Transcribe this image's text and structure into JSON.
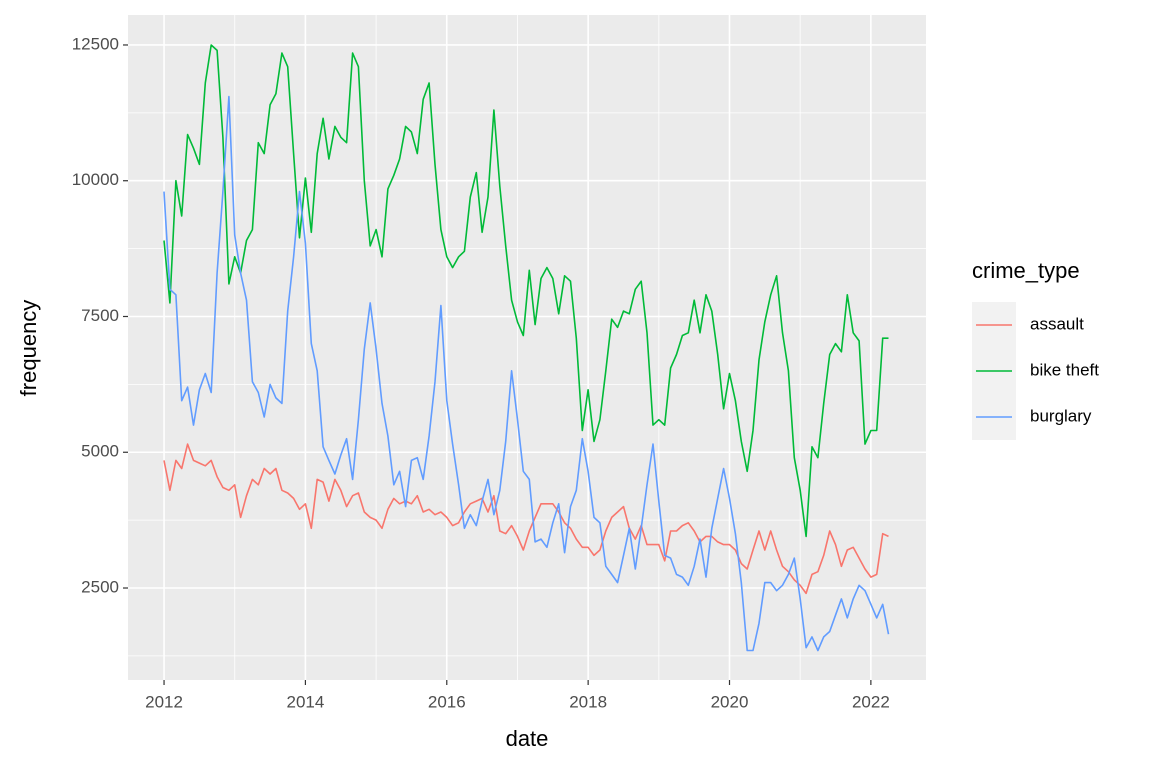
{
  "chart_data": {
    "type": "line",
    "x_label": "date",
    "y_label": "frequency",
    "legend_title": "crime_type",
    "legend": "right",
    "grid": true,
    "xlim": [
      2011.49,
      2022.78
    ],
    "xticks": [
      2012,
      2014,
      2016,
      2018,
      2020,
      2022
    ],
    "ylim": [
      806,
      13052
    ],
    "yticks": [
      2500,
      5000,
      7500,
      10000,
      12500
    ],
    "x": [
      2012,
      2012.083,
      2012.167,
      2012.25,
      2012.333,
      2012.417,
      2012.5,
      2012.583,
      2012.667,
      2012.75,
      2012.833,
      2012.917,
      2013,
      2013.083,
      2013.167,
      2013.25,
      2013.333,
      2013.417,
      2013.5,
      2013.583,
      2013.667,
      2013.75,
      2013.833,
      2013.917,
      2014,
      2014.083,
      2014.167,
      2014.25,
      2014.333,
      2014.417,
      2014.5,
      2014.583,
      2014.667,
      2014.75,
      2014.833,
      2014.917,
      2015,
      2015.083,
      2015.167,
      2015.25,
      2015.333,
      2015.417,
      2015.5,
      2015.583,
      2015.667,
      2015.75,
      2015.833,
      2015.917,
      2016,
      2016.083,
      2016.167,
      2016.25,
      2016.333,
      2016.417,
      2016.5,
      2016.583,
      2016.667,
      2016.75,
      2016.833,
      2016.917,
      2017,
      2017.083,
      2017.167,
      2017.25,
      2017.333,
      2017.417,
      2017.5,
      2017.583,
      2017.667,
      2017.75,
      2017.833,
      2017.917,
      2018,
      2018.083,
      2018.167,
      2018.25,
      2018.333,
      2018.417,
      2018.5,
      2018.583,
      2018.667,
      2018.75,
      2018.833,
      2018.917,
      2019,
      2019.083,
      2019.167,
      2019.25,
      2019.333,
      2019.417,
      2019.5,
      2019.583,
      2019.667,
      2019.75,
      2019.833,
      2019.917,
      2020,
      2020.083,
      2020.167,
      2020.25,
      2020.333,
      2020.417,
      2020.5,
      2020.583,
      2020.667,
      2020.75,
      2020.833,
      2020.917,
      2021,
      2021.083,
      2021.167,
      2021.25,
      2021.333,
      2021.417,
      2021.5,
      2021.583,
      2021.667,
      2021.75,
      2021.833,
      2021.917,
      2022,
      2022.083,
      2022.167,
      2022.25
    ],
    "series": [
      {
        "name": "assault",
        "color": "#F8766D",
        "values": [
          4850,
          4300,
          4850,
          4700,
          5150,
          4850,
          4800,
          4750,
          4850,
          4550,
          4350,
          4300,
          4400,
          3800,
          4200,
          4500,
          4400,
          4700,
          4600,
          4700,
          4300,
          4250,
          4150,
          3950,
          4050,
          3600,
          4500,
          4450,
          4100,
          4500,
          4300,
          4000,
          4200,
          4250,
          3900,
          3800,
          3750,
          3600,
          3950,
          4150,
          4050,
          4100,
          4050,
          4200,
          3900,
          3950,
          3850,
          3900,
          3800,
          3650,
          3700,
          3900,
          4050,
          4100,
          4150,
          3900,
          4200,
          3550,
          3500,
          3650,
          3450,
          3200,
          3550,
          3800,
          4050,
          4050,
          4050,
          3900,
          3700,
          3600,
          3400,
          3250,
          3250,
          3100,
          3200,
          3550,
          3800,
          3900,
          4000,
          3600,
          3400,
          3650,
          3300,
          3300,
          3300,
          3000,
          3550,
          3550,
          3650,
          3700,
          3550,
          3350,
          3450,
          3450,
          3350,
          3300,
          3300,
          3200,
          2950,
          2850,
          3200,
          3550,
          3200,
          3550,
          3200,
          2900,
          2800,
          2650,
          2550,
          2400,
          2750,
          2800,
          3100,
          3550,
          3300,
          2900,
          3200,
          3250,
          3050,
          2850,
          2700,
          2750,
          3500,
          3450
        ]
      },
      {
        "name": "bike theft",
        "color": "#00BA38",
        "values": [
          8900,
          7750,
          10000,
          9350,
          10850,
          10600,
          10300,
          11800,
          12500,
          12400,
          10800,
          8100,
          8600,
          8300,
          8900,
          9100,
          10700,
          10500,
          11400,
          11600,
          12350,
          12100,
          10500,
          8950,
          10050,
          9050,
          10500,
          11150,
          10400,
          11000,
          10800,
          10700,
          12350,
          12100,
          10000,
          8800,
          9100,
          8600,
          9850,
          10100,
          10400,
          11000,
          10900,
          10500,
          11500,
          11800,
          10300,
          9100,
          8600,
          8400,
          8600,
          8700,
          9700,
          10150,
          9050,
          9700,
          11300,
          9900,
          8800,
          7800,
          7400,
          7150,
          8350,
          7350,
          8200,
          8400,
          8200,
          7550,
          8250,
          8150,
          7100,
          5400,
          6150,
          5200,
          5600,
          6500,
          7450,
          7300,
          7600,
          7550,
          8000,
          8150,
          7200,
          5500,
          5600,
          5500,
          6550,
          6800,
          7150,
          7200,
          7800,
          7200,
          7900,
          7600,
          6800,
          5800,
          6450,
          5950,
          5200,
          4650,
          5400,
          6700,
          7400,
          7900,
          8250,
          7200,
          6500,
          4900,
          4300,
          3450,
          5100,
          4900,
          5900,
          6800,
          7000,
          6850,
          7900,
          7200,
          7050,
          5150,
          5400,
          5400,
          7100,
          7100
        ]
      },
      {
        "name": "burglary",
        "color": "#619CFF",
        "values": [
          9800,
          8000,
          7900,
          5950,
          6200,
          5500,
          6150,
          6450,
          6100,
          8300,
          9800,
          11550,
          9000,
          8300,
          7800,
          6300,
          6100,
          5650,
          6250,
          6000,
          5900,
          7600,
          8600,
          9800,
          8850,
          7000,
          6500,
          5100,
          4850,
          4600,
          4950,
          5250,
          4500,
          5600,
          6900,
          7750,
          6900,
          5900,
          5300,
          4400,
          4650,
          4000,
          4850,
          4900,
          4500,
          5300,
          6300,
          7700,
          5950,
          5150,
          4400,
          3600,
          3850,
          3650,
          4100,
          4500,
          3850,
          4300,
          5200,
          6500,
          5600,
          4650,
          4500,
          3350,
          3400,
          3250,
          3700,
          4050,
          3150,
          4000,
          4300,
          5250,
          4650,
          3800,
          3700,
          2900,
          2750,
          2600,
          3100,
          3600,
          2850,
          3600,
          4400,
          5150,
          4100,
          3100,
          3050,
          2750,
          2700,
          2550,
          2900,
          3400,
          2700,
          3600,
          4150,
          4700,
          4150,
          3500,
          2600,
          1350,
          1350,
          1850,
          2600,
          2600,
          2450,
          2550,
          2750,
          3050,
          2300,
          1400,
          1600,
          1350,
          1600,
          1700,
          2000,
          2300,
          1950,
          2300,
          2550,
          2450,
          2200,
          1950,
          2200,
          1650
        ]
      }
    ]
  }
}
